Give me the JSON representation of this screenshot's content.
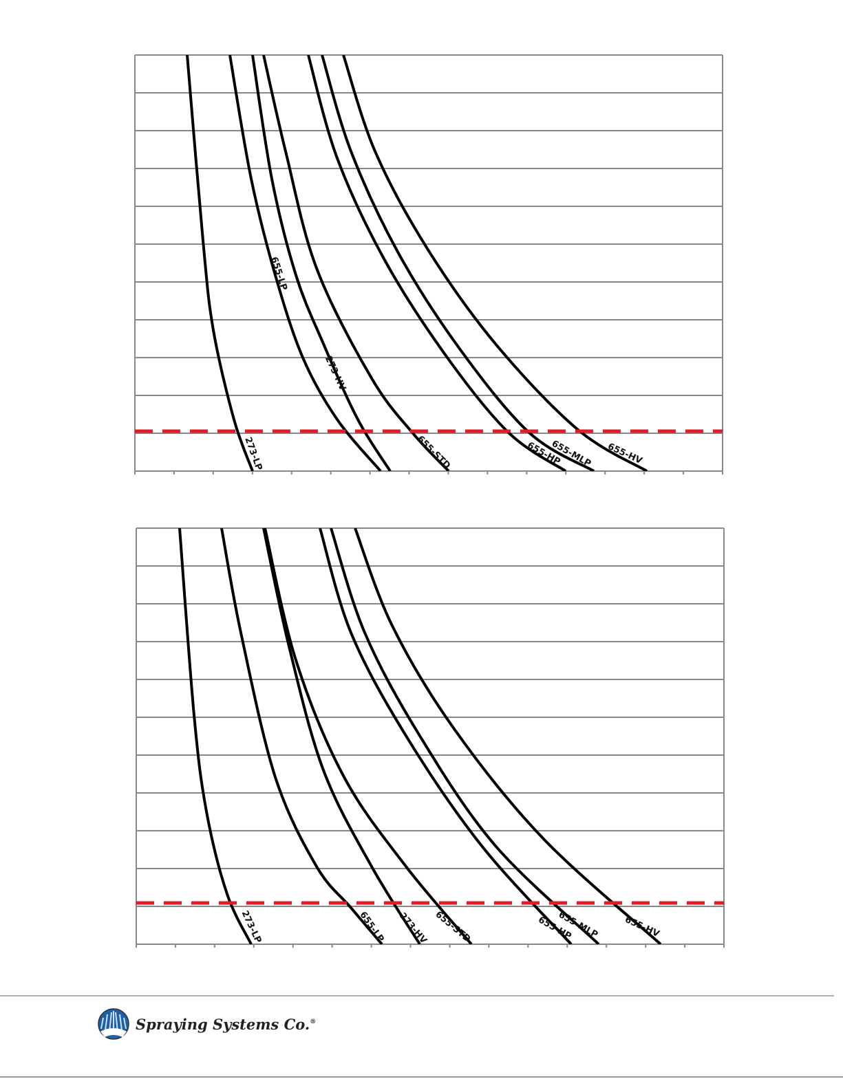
{
  "charts": [
    {
      "curves": [
        "273-LP",
        "655-LP",
        "273-HV",
        "655-STD",
        "655-HP",
        "655-MLP",
        "655-HV"
      ]
    },
    {
      "curves": [
        "273-LP",
        "655-LP",
        "273-HV",
        "655-STD",
        "655-HP",
        "655-MLP",
        "655-HV"
      ]
    }
  ],
  "footer": {
    "company": "Spraying Systems Co.",
    "mark": "®"
  }
}
